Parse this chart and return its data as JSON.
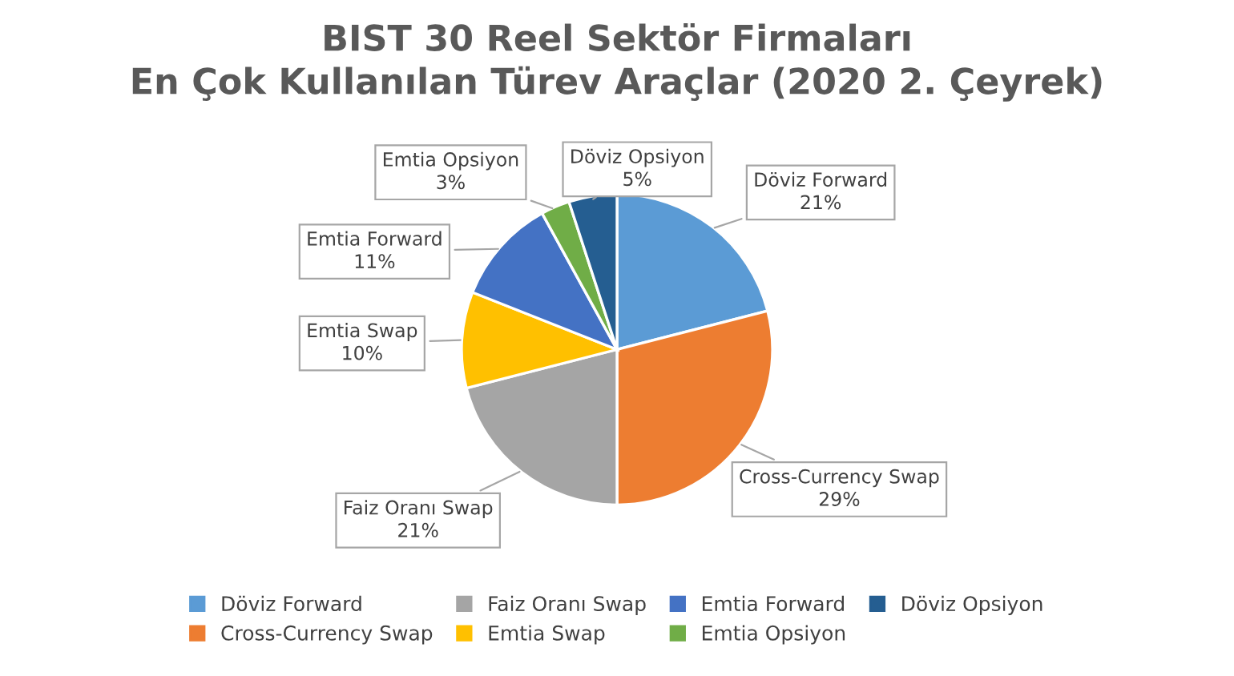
{
  "chart_data": {
    "type": "pie",
    "title": "BIST 30 Reel Sektör Firmaları\nEn Çok Kullanılan Türev Araçlar (2020 2. Çeyrek)",
    "categories": [
      "Döviz Forward",
      "Cross-Currency Swap",
      "Faiz Oranı Swap",
      "Emtia Swap",
      "Emtia Forward",
      "Emtia Opsiyon",
      "Döviz Opsiyon"
    ],
    "values": [
      21,
      29,
      21,
      10,
      11,
      3,
      5
    ],
    "value_labels": [
      "21%",
      "29%",
      "21%",
      "10%",
      "11%",
      "3%",
      "5%"
    ],
    "colors": [
      "#5b9bd5",
      "#ed7d31",
      "#a5a5a5",
      "#ffc000",
      "#4472c4",
      "#70ad47",
      "#255e91"
    ],
    "legend": "bottom"
  }
}
